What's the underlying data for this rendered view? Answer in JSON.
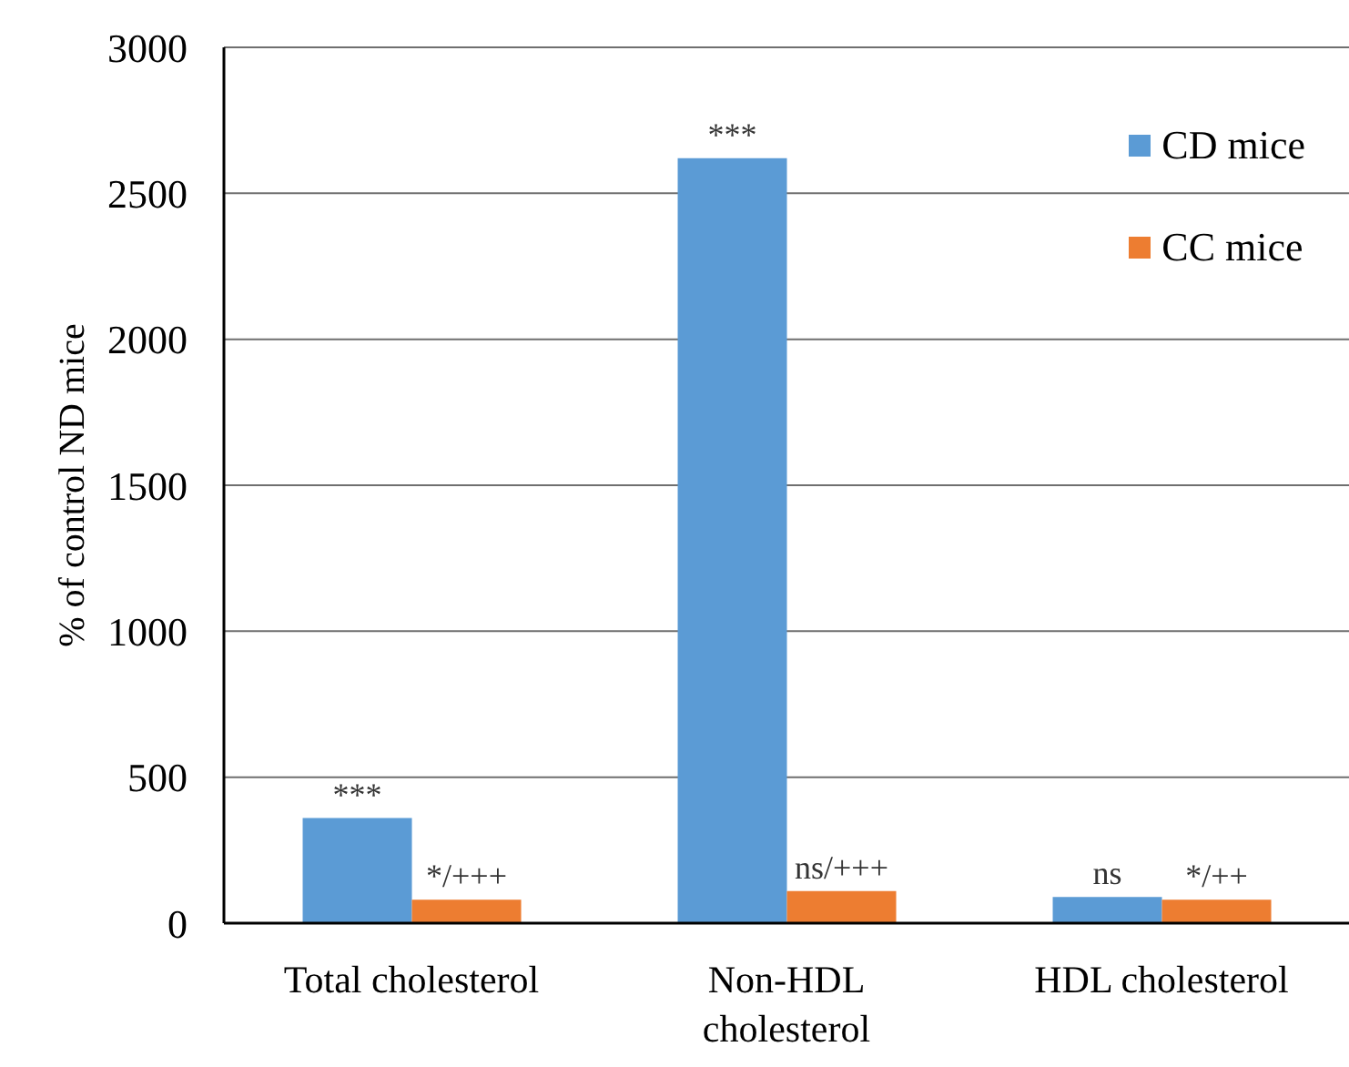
{
  "chart_data": {
    "type": "bar",
    "ylabel": "% of control ND mice",
    "categories": [
      "Total cholesterol",
      "Non-HDL cholesterol",
      "HDL cholesterol"
    ],
    "series": [
      {
        "name": "CD mice",
        "color": "#5b9bd5",
        "values": [
          360,
          2620,
          90
        ],
        "value_labels": [
          "***",
          "***",
          "ns"
        ]
      },
      {
        "name": "CC mice",
        "color": "#ed7d31",
        "values": [
          80,
          110,
          80
        ],
        "value_labels": [
          "*/+++",
          "ns/+++",
          "*/++"
        ]
      }
    ],
    "ylim": [
      0,
      3000
    ],
    "yticks": [
      0,
      500,
      1000,
      1500,
      2000,
      2500,
      3000
    ],
    "grid": "y",
    "legend": "top right"
  }
}
